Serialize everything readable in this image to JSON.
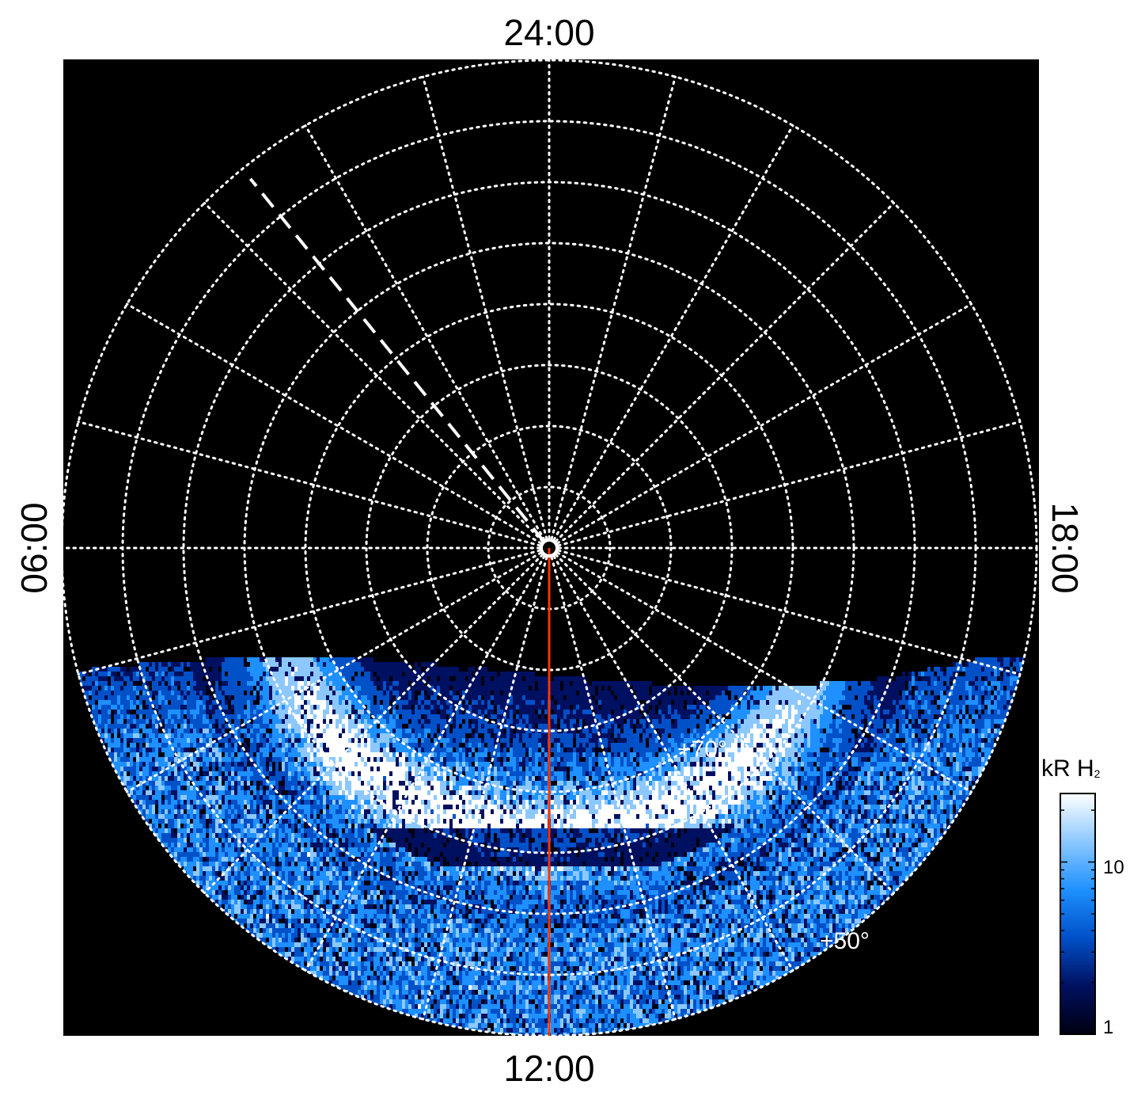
{
  "diagram": {
    "type": "polar-projection",
    "local_time_labels": {
      "top": "24:00",
      "bottom": "12:00",
      "left": "06:00",
      "right": "18:00"
    },
    "latitude_labels": [
      "+70°",
      "+50°"
    ],
    "latitude_circles_deg": [
      85,
      80,
      75,
      70,
      65,
      60,
      55,
      50
    ],
    "meridian_step_hours": 1
  },
  "colorbar": {
    "title": "kR H",
    "title_sub": "2",
    "scale": "log",
    "range": [
      1,
      25
    ],
    "tick_labels": [
      "10",
      "1"
    ],
    "tick_values": [
      10,
      1
    ],
    "colors": [
      "#000010",
      "#001060",
      "#0050c8",
      "#1e90ff",
      "#8cc8ff",
      "#ffffff"
    ]
  },
  "colors": {
    "background": "#000000",
    "grid": "#ffffff",
    "noon_meridian": "#ff3300",
    "dashed_meridian": "#ffffff"
  }
}
